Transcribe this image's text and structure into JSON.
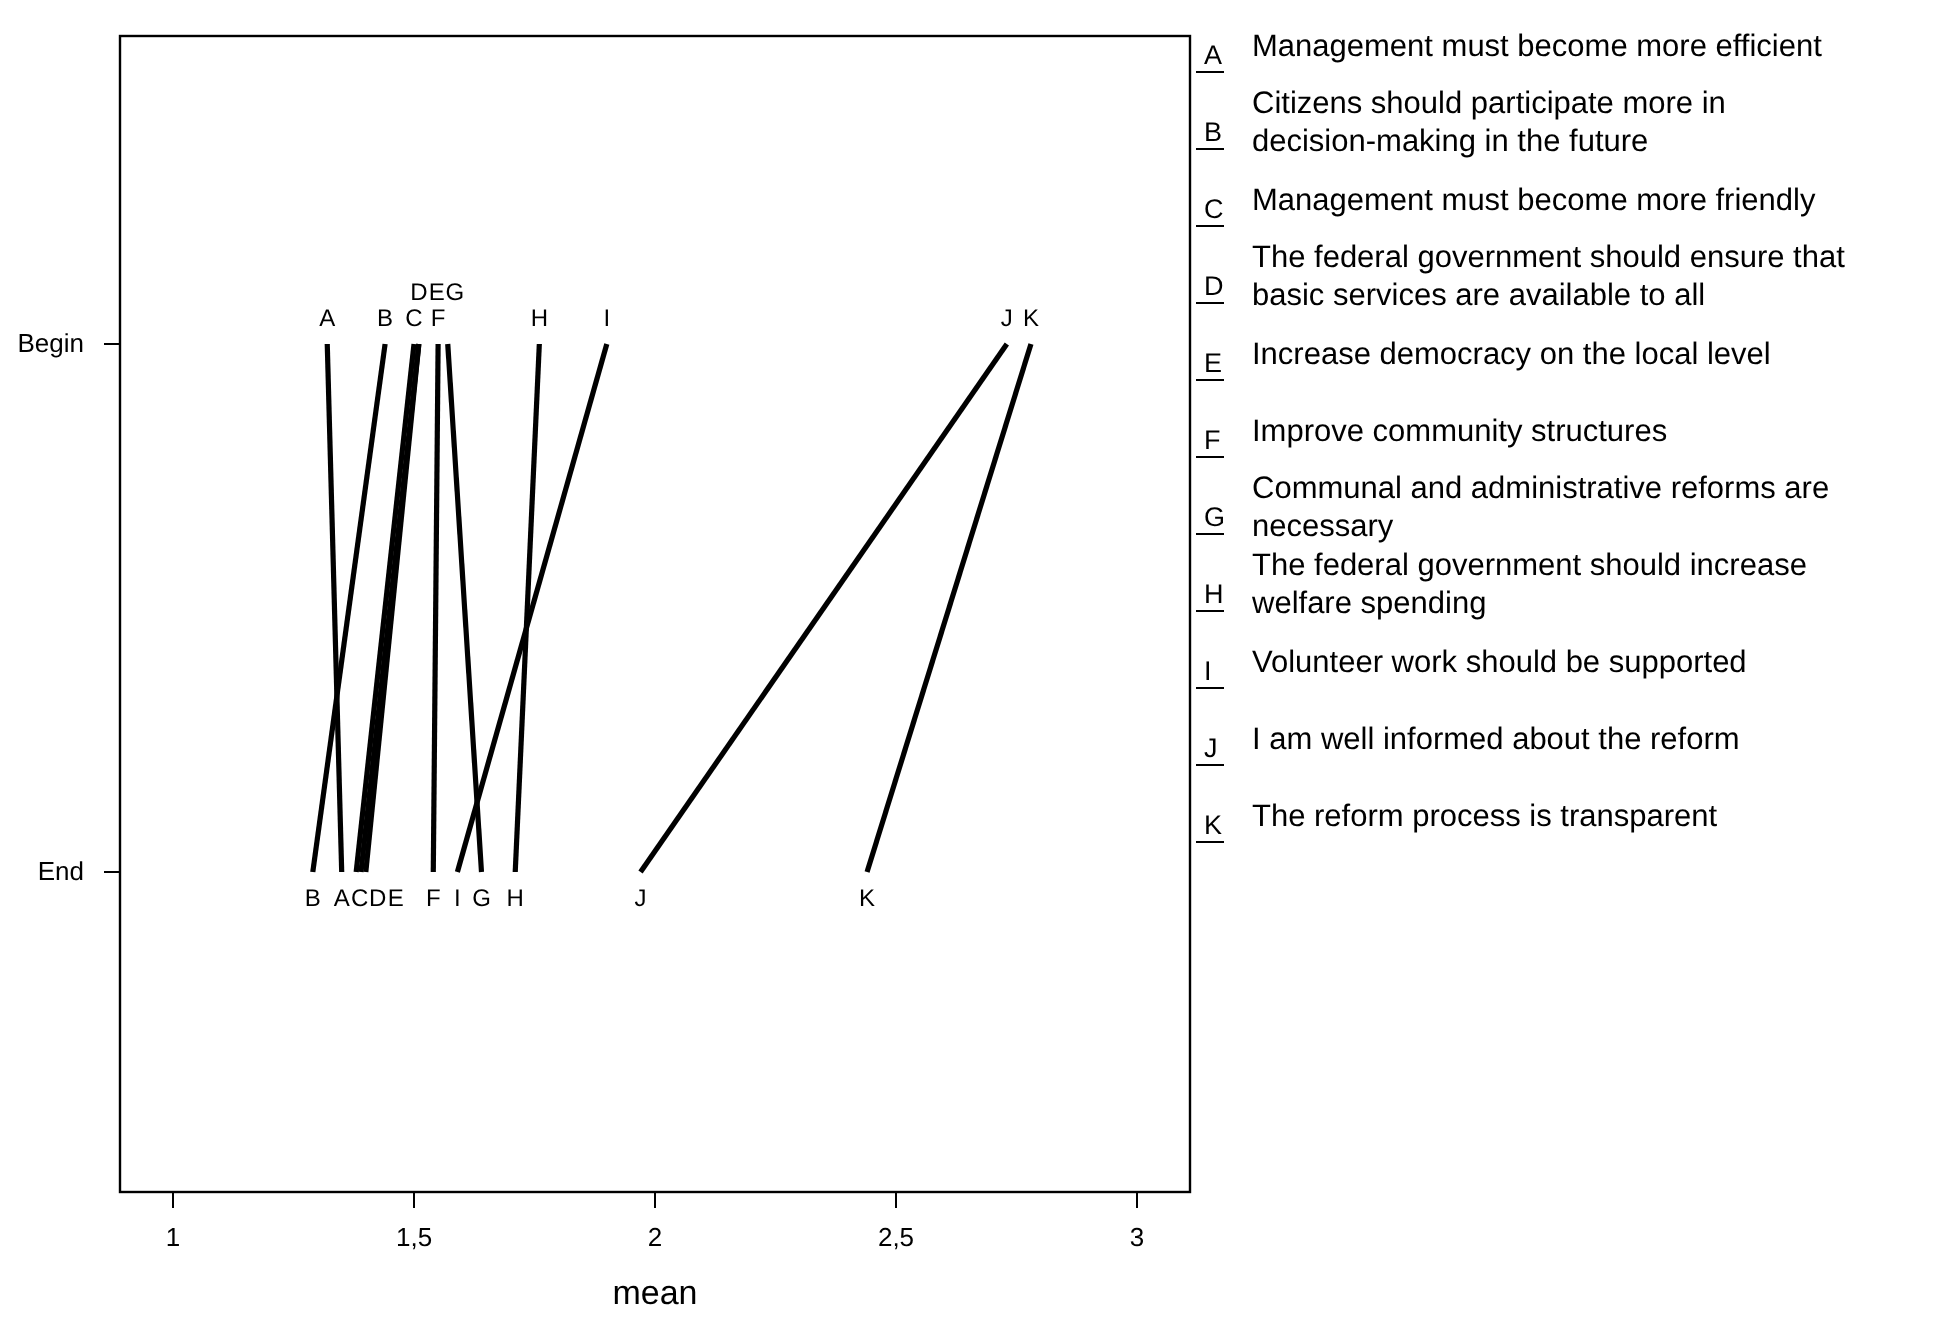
{
  "chart_data": {
    "type": "line",
    "orientation": "horizontal",
    "xlabel": "mean",
    "categories": [
      "Begin",
      "End"
    ],
    "xlim": [
      0.89,
      3.11
    ],
    "xticks": [
      1,
      {
        "value": 1.5,
        "label": "1,5"
      },
      2,
      {
        "value": 2.5,
        "label": "2,5"
      },
      3
    ],
    "grid": false,
    "marker": "none",
    "line_style": "solid",
    "series": [
      {
        "name": "A",
        "color": "#000000",
        "values": [
          1.32,
          1.35
        ]
      },
      {
        "name": "B",
        "color": "#000000",
        "values": [
          1.44,
          1.29
        ]
      },
      {
        "name": "C",
        "color": "#000000",
        "values": [
          1.5,
          1.38
        ]
      },
      {
        "name": "D",
        "color": "#000000",
        "values": [
          1.51,
          1.39
        ]
      },
      {
        "name": "E",
        "color": "#000000",
        "values": [
          1.51,
          1.4
        ]
      },
      {
        "name": "F",
        "color": "#000000",
        "values": [
          1.55,
          1.54
        ]
      },
      {
        "name": "G",
        "color": "#000000",
        "values": [
          1.57,
          1.64
        ]
      },
      {
        "name": "H",
        "color": "#000000",
        "values": [
          1.76,
          1.71
        ]
      },
      {
        "name": "I",
        "color": "#000000",
        "values": [
          1.9,
          1.59
        ]
      },
      {
        "name": "J",
        "color": "#000000",
        "values": [
          2.73,
          1.97
        ]
      },
      {
        "name": "K",
        "color": "#000000",
        "values": [
          2.78,
          2.44
        ]
      }
    ],
    "annotations": [
      "Management must become more efficient",
      "Citizens should participate more in decision-making in the future",
      "Management must become more friendly",
      "The federal government should ensure that basic services are available to all",
      "Increase democracy on the local level",
      "Improve community structures",
      "Communal and administrative reforms are necessary",
      "The federal government should increase welfare spending",
      "Volunteer work should be supported",
      "I am well informed about the reform",
      "The reform process is transparent"
    ]
  }
}
